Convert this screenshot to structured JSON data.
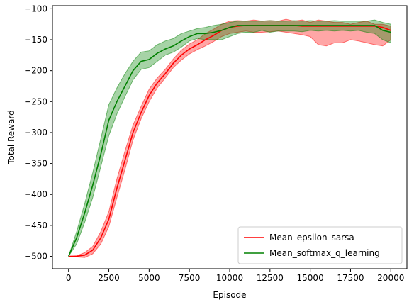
{
  "chart_data": {
    "type": "line",
    "title": "",
    "xlabel": "Episode",
    "ylabel": "Total Reward",
    "xlim": [
      -1000,
      21000
    ],
    "ylim": [
      -520,
      -95
    ],
    "xticks": [
      0,
      2500,
      5000,
      7500,
      10000,
      12500,
      15000,
      17500,
      20000
    ],
    "xtick_labels": [
      "0",
      "2500",
      "5000",
      "7500",
      "10000",
      "12500",
      "15000",
      "17500",
      "20000"
    ],
    "yticks": [
      -500,
      -450,
      -400,
      -350,
      -300,
      -250,
      -200,
      -150,
      -100
    ],
    "ytick_labels": [
      "−500",
      "−450",
      "−400",
      "−350",
      "−300",
      "−250",
      "−200",
      "−150",
      "−100"
    ],
    "grid": false,
    "legend": {
      "placement": "lower-right"
    },
    "series": [
      {
        "name": "Mean_epsilon_sarsa",
        "color": "#ff0000",
        "band_color": "#ff0000",
        "x": [
          0,
          500,
          1000,
          1500,
          2000,
          2500,
          3000,
          3500,
          4000,
          4500,
          5000,
          5500,
          6000,
          6500,
          7000,
          7500,
          8000,
          8500,
          9000,
          9500,
          10000,
          10500,
          11000,
          11500,
          12000,
          12500,
          13000,
          13500,
          14000,
          14500,
          15000,
          15500,
          16000,
          16500,
          17000,
          17500,
          18000,
          18500,
          19000,
          19500,
          20000
        ],
        "values": [
          -500,
          -500,
          -498,
          -490,
          -470,
          -440,
          -390,
          -345,
          -300,
          -268,
          -240,
          -220,
          -205,
          -188,
          -175,
          -165,
          -158,
          -150,
          -143,
          -135,
          -130,
          -128,
          -127,
          -127,
          -127,
          -127,
          -127,
          -127,
          -127,
          -128,
          -128,
          -128,
          -128,
          -128,
          -128,
          -128,
          -128,
          -128,
          -128,
          -130,
          -135
        ],
        "lower": [
          -500,
          -501,
          -502,
          -496,
          -480,
          -452,
          -405,
          -360,
          -312,
          -278,
          -250,
          -228,
          -212,
          -195,
          -183,
          -173,
          -166,
          -160,
          -153,
          -145,
          -140,
          -138,
          -136,
          -138,
          -138,
          -137,
          -136,
          -138,
          -140,
          -142,
          -145,
          -158,
          -160,
          -155,
          -155,
          -150,
          -152,
          -155,
          -158,
          -160,
          -150
        ],
        "upper": [
          -500,
          -499,
          -494,
          -484,
          -460,
          -428,
          -375,
          -330,
          -288,
          -258,
          -230,
          -212,
          -198,
          -181,
          -167,
          -157,
          -150,
          -140,
          -133,
          -125,
          -120,
          -119,
          -120,
          -118,
          -120,
          -119,
          -120,
          -117,
          -120,
          -118,
          -122,
          -118,
          -120,
          -122,
          -122,
          -125,
          -122,
          -120,
          -125,
          -125,
          -128
        ]
      },
      {
        "name": "Mean_softmax_q_learning",
        "color": "#008000",
        "band_color": "#008000",
        "x": [
          0,
          500,
          1000,
          1500,
          2000,
          2500,
          3000,
          3500,
          4000,
          4500,
          5000,
          5500,
          6000,
          6500,
          7000,
          7500,
          8000,
          8500,
          9000,
          9500,
          10000,
          10500,
          11000,
          11500,
          12000,
          12500,
          13000,
          13500,
          14000,
          14500,
          15000,
          15500,
          16000,
          16500,
          17000,
          17500,
          18000,
          18500,
          19000,
          19500,
          20000
        ],
        "values": [
          -500,
          -470,
          -430,
          -385,
          -335,
          -280,
          -250,
          -225,
          -200,
          -185,
          -182,
          -172,
          -165,
          -160,
          -152,
          -145,
          -140,
          -140,
          -138,
          -135,
          -130,
          -127,
          -127,
          -127,
          -127,
          -127,
          -127,
          -127,
          -127,
          -127,
          -127,
          -127,
          -127,
          -127,
          -127,
          -127,
          -127,
          -127,
          -127,
          -135,
          -138
        ],
        "lower": [
          -500,
          -480,
          -445,
          -405,
          -355,
          -305,
          -270,
          -242,
          -215,
          -198,
          -195,
          -185,
          -175,
          -170,
          -162,
          -152,
          -148,
          -150,
          -150,
          -150,
          -145,
          -140,
          -138,
          -138,
          -135,
          -138,
          -136,
          -136,
          -136,
          -137,
          -135,
          -136,
          -135,
          -136,
          -135,
          -136,
          -135,
          -138,
          -140,
          -150,
          -155
        ],
        "upper": [
          -500,
          -460,
          -415,
          -365,
          -310,
          -255,
          -228,
          -205,
          -185,
          -170,
          -168,
          -158,
          -152,
          -148,
          -140,
          -136,
          -132,
          -130,
          -127,
          -125,
          -122,
          -120,
          -120,
          -120,
          -120,
          -119,
          -120,
          -120,
          -119,
          -120,
          -119,
          -120,
          -120,
          -119,
          -120,
          -120,
          -120,
          -120,
          -118,
          -122,
          -125
        ]
      }
    ]
  }
}
